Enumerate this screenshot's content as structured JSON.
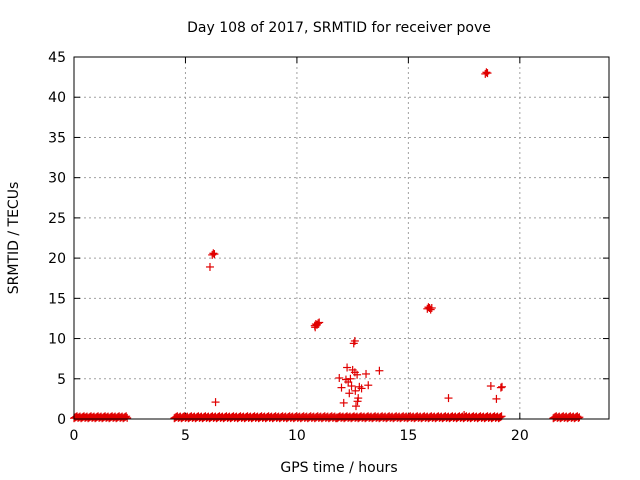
{
  "chart_data": {
    "type": "scatter",
    "title": "Day 108 of 2017, SRMTID for receiver pove",
    "xlabel": "GPS time / hours",
    "ylabel": "SRMTID / TECUs",
    "xlim": [
      0,
      24
    ],
    "ylim": [
      0,
      45
    ],
    "xticks": [
      0,
      5,
      10,
      15,
      20
    ],
    "yticks": [
      0,
      5,
      10,
      15,
      20,
      25,
      30,
      35,
      40,
      45
    ],
    "grid": true,
    "marker": "+",
    "color": "#e00000",
    "baseline_segments": [
      {
        "x_start": 0.0,
        "x_end": 2.4,
        "y": 0.1
      },
      {
        "x_start": 4.5,
        "x_end": 11.8,
        "y": 0.1
      },
      {
        "x_start": 11.8,
        "x_end": 19.2,
        "y": 0.1
      },
      {
        "x_start": 21.5,
        "x_end": 22.7,
        "y": 0.1
      }
    ],
    "points": [
      {
        "x": 6.1,
        "y": 18.9
      },
      {
        "x": 6.2,
        "y": 20.4
      },
      {
        "x": 6.25,
        "y": 20.6
      },
      {
        "x": 6.3,
        "y": 20.5
      },
      {
        "x": 6.35,
        "y": 2.1
      },
      {
        "x": 10.8,
        "y": 11.6
      },
      {
        "x": 10.85,
        "y": 11.8
      },
      {
        "x": 10.9,
        "y": 11.7
      },
      {
        "x": 10.95,
        "y": 11.9
      },
      {
        "x": 11.0,
        "y": 12.0
      },
      {
        "x": 10.82,
        "y": 11.4
      },
      {
        "x": 11.9,
        "y": 5.1
      },
      {
        "x": 12.0,
        "y": 3.9
      },
      {
        "x": 12.1,
        "y": 2.0
      },
      {
        "x": 12.2,
        "y": 4.9
      },
      {
        "x": 12.25,
        "y": 6.4
      },
      {
        "x": 12.3,
        "y": 4.6
      },
      {
        "x": 12.35,
        "y": 3.2
      },
      {
        "x": 12.4,
        "y": 5.0
      },
      {
        "x": 12.45,
        "y": 4.1
      },
      {
        "x": 12.5,
        "y": 6.1
      },
      {
        "x": 12.55,
        "y": 9.4
      },
      {
        "x": 12.6,
        "y": 5.8
      },
      {
        "x": 12.6,
        "y": 9.7
      },
      {
        "x": 12.62,
        "y": 3.5
      },
      {
        "x": 12.65,
        "y": 1.6
      },
      {
        "x": 12.7,
        "y": 5.5
      },
      {
        "x": 12.72,
        "y": 2.2
      },
      {
        "x": 12.75,
        "y": 2.6
      },
      {
        "x": 12.8,
        "y": 4.0
      },
      {
        "x": 12.9,
        "y": 3.8
      },
      {
        "x": 13.1,
        "y": 5.6
      },
      {
        "x": 13.2,
        "y": 4.2
      },
      {
        "x": 13.7,
        "y": 6.0
      },
      {
        "x": 15.85,
        "y": 13.7
      },
      {
        "x": 15.9,
        "y": 13.9
      },
      {
        "x": 15.95,
        "y": 13.8
      },
      {
        "x": 16.0,
        "y": 13.6
      },
      {
        "x": 16.05,
        "y": 13.8
      },
      {
        "x": 16.8,
        "y": 2.6
      },
      {
        "x": 17.5,
        "y": 0.5
      },
      {
        "x": 18.45,
        "y": 42.9
      },
      {
        "x": 18.5,
        "y": 43.1
      },
      {
        "x": 18.55,
        "y": 43.0
      },
      {
        "x": 18.7,
        "y": 4.1
      },
      {
        "x": 18.95,
        "y": 2.5
      },
      {
        "x": 19.15,
        "y": 3.9
      },
      {
        "x": 19.2,
        "y": 4.0
      }
    ]
  }
}
